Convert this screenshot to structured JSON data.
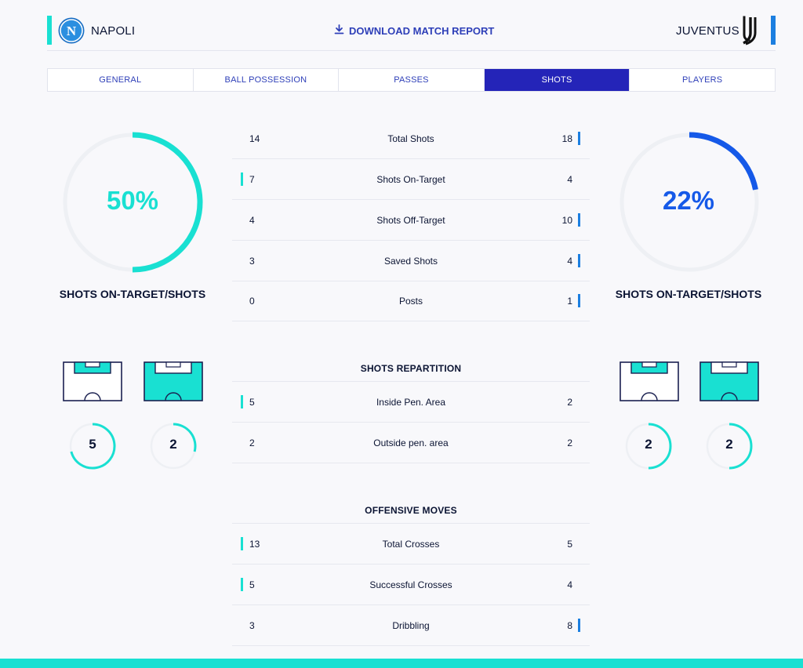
{
  "header": {
    "home_team": "NAPOLI",
    "away_team": "JUVENTUS",
    "download_label": "DOWNLOAD MATCH REPORT",
    "home_color": "#19e0d2",
    "away_color": "#1c7fe0"
  },
  "tabs": [
    {
      "label": "GENERAL",
      "active": false
    },
    {
      "label": "BALL POSSESSION",
      "active": false
    },
    {
      "label": "PASSES",
      "active": false
    },
    {
      "label": "SHOTS",
      "active": true
    },
    {
      "label": "PLAYERS",
      "active": false
    }
  ],
  "home_gauge": {
    "value": 50,
    "label": "50%",
    "caption": "SHOTS ON-TARGET/SHOTS"
  },
  "away_gauge": {
    "value": 22,
    "label": "22%",
    "caption": "SHOTS ON-TARGET/SHOTS"
  },
  "shots_rows": [
    {
      "home": "14",
      "label": "Total Shots",
      "away": "18",
      "leader": "away"
    },
    {
      "home": "7",
      "label": "Shots On-Target",
      "away": "4",
      "leader": "home"
    },
    {
      "home": "4",
      "label": "Shots Off-Target",
      "away": "10",
      "leader": "away"
    },
    {
      "home": "3",
      "label": "Saved Shots",
      "away": "4",
      "leader": "away"
    },
    {
      "home": "0",
      "label": "Posts",
      "away": "1",
      "leader": "away"
    }
  ],
  "repartition": {
    "title": "SHOTS REPARTITION",
    "rows": [
      {
        "home": "5",
        "label": "Inside Pen. Area",
        "away": "2",
        "leader": "home"
      },
      {
        "home": "2",
        "label": "Outside pen. area",
        "away": "2",
        "leader": "none"
      }
    ]
  },
  "offensive": {
    "title": "OFFENSIVE MOVES",
    "rows": [
      {
        "home": "13",
        "label": "Total Crosses",
        "away": "5",
        "leader": "home"
      },
      {
        "home": "5",
        "label": "Successful Crosses",
        "away": "4",
        "leader": "home"
      },
      {
        "home": "3",
        "label": "Dribbling",
        "away": "8",
        "leader": "away"
      }
    ]
  },
  "home_zones": {
    "inside": "5",
    "outside": "2",
    "inside_fraction": 0.71,
    "outside_fraction": 0.29
  },
  "away_zones": {
    "inside": "2",
    "outside": "2",
    "inside_fraction": 0.5,
    "outside_fraction": 0.5
  }
}
